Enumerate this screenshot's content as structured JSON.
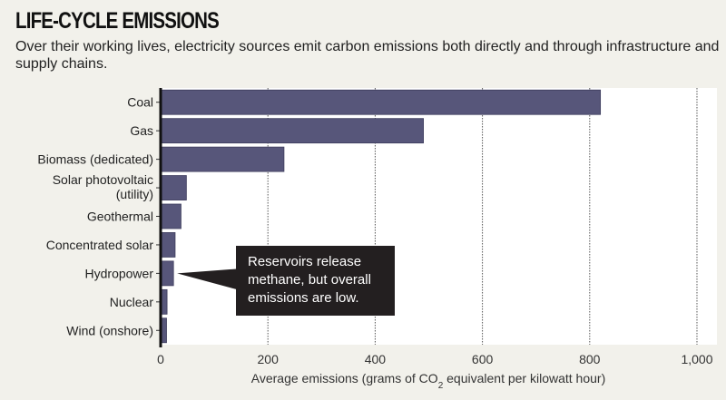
{
  "title": "LIFE-CYCLE EMISSIONS",
  "subtitle": "Over their working lives, electricity sources emit carbon emissions both directly and through infrastructure and supply chains.",
  "chart_data": {
    "type": "bar",
    "orientation": "horizontal",
    "categories": [
      [
        "Coal"
      ],
      [
        "Gas"
      ],
      [
        "Biomass (dedicated)"
      ],
      [
        "Solar photovoltaic",
        "(utility)"
      ],
      [
        "Geothermal"
      ],
      [
        "Concentrated solar"
      ],
      [
        "Hydropower"
      ],
      [
        "Nuclear"
      ],
      [
        "Wind (onshore)"
      ]
    ],
    "values": [
      820,
      490,
      230,
      48,
      38,
      27,
      24,
      12,
      11
    ],
    "xlabel_parts": [
      "Average emissions (grams of CO",
      "2",
      " equivalent per kilowatt hour)"
    ],
    "xlim": [
      0,
      1000
    ],
    "xticks": [
      0,
      200,
      400,
      600,
      800,
      1000
    ],
    "xtick_labels": [
      "0",
      "200",
      "400",
      "600",
      "800",
      "1,000"
    ],
    "grid": "vertical dotted",
    "bar_color": "#57567a",
    "annotation": {
      "target": "Hydropower",
      "lines": [
        "Reservoirs release",
        "methane, but overall",
        "emissions are low."
      ]
    }
  }
}
